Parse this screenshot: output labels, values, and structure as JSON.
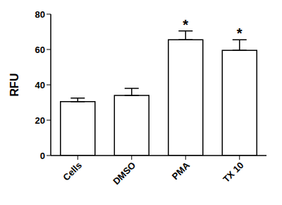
{
  "chart_data": {
    "type": "bar",
    "y_label": "RFU",
    "categories": [
      "Cells",
      "DMSO",
      "PMA",
      "TX 10"
    ],
    "values": [
      30.5,
      34,
      65.5,
      59.5
    ],
    "errors": [
      2,
      4,
      5,
      6
    ],
    "color": "#ffffff",
    "ylim": [
      0,
      80
    ],
    "yticks": [
      0,
      20,
      40,
      60,
      80
    ],
    "grid": false,
    "annotations": [
      {
        "category": "PMA",
        "text": "*"
      },
      {
        "category": "TX 10",
        "text": "*"
      }
    ]
  }
}
